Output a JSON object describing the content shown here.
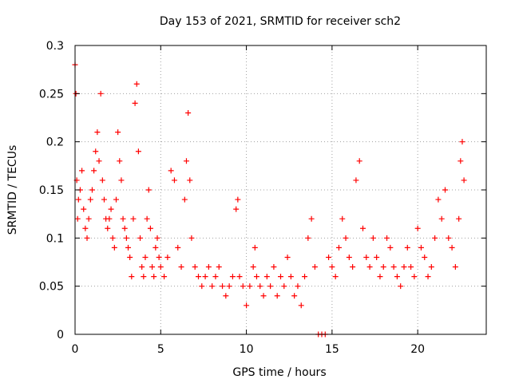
{
  "chart_data": {
    "type": "scatter",
    "title": "Day 153 of 2021, SRMTID for receiver sch2",
    "xlabel": "GPS time / hours",
    "ylabel": "SRMTID / TECUs",
    "xlim": [
      0,
      24
    ],
    "ylim": [
      0,
      0.3
    ],
    "xticks": [
      0,
      5,
      10,
      15,
      20
    ],
    "yticks": [
      0,
      0.05,
      0.1,
      0.15,
      0.2,
      0.25,
      0.3
    ],
    "grid": true,
    "marker": "+",
    "color": "#ff0000",
    "series": [
      {
        "name": "sch2",
        "x": [
          0.0,
          0.05,
          0.1,
          0.15,
          0.2,
          0.3,
          0.4,
          0.5,
          0.6,
          0.7,
          0.8,
          0.9,
          1.0,
          1.1,
          1.2,
          1.3,
          1.4,
          1.5,
          1.6,
          1.7,
          1.8,
          1.9,
          2.0,
          2.1,
          2.2,
          2.3,
          2.4,
          2.5,
          2.6,
          2.7,
          2.8,
          2.9,
          3.0,
          3.1,
          3.2,
          3.3,
          3.4,
          3.5,
          3.6,
          3.7,
          3.8,
          3.9,
          4.0,
          4.1,
          4.2,
          4.3,
          4.4,
          4.5,
          4.6,
          4.7,
          4.8,
          4.9,
          5.0,
          5.2,
          5.4,
          5.6,
          5.8,
          6.0,
          6.2,
          6.4,
          6.5,
          6.6,
          6.7,
          6.8,
          7.0,
          7.2,
          7.4,
          7.6,
          7.8,
          8.0,
          8.2,
          8.4,
          8.6,
          8.8,
          9.0,
          9.2,
          9.4,
          9.5,
          9.6,
          9.8,
          10.0,
          10.2,
          10.4,
          10.5,
          10.6,
          10.8,
          11.0,
          11.2,
          11.4,
          11.6,
          11.8,
          12.0,
          12.2,
          12.4,
          12.6,
          12.8,
          13.0,
          13.2,
          13.4,
          13.6,
          13.8,
          14.0,
          14.2,
          14.4,
          14.6,
          14.8,
          15.0,
          15.2,
          15.4,
          15.6,
          15.8,
          16.0,
          16.2,
          16.4,
          16.6,
          16.8,
          17.0,
          17.2,
          17.4,
          17.6,
          17.8,
          18.0,
          18.2,
          18.4,
          18.6,
          18.8,
          19.0,
          19.2,
          19.4,
          19.6,
          19.8,
          20.0,
          20.2,
          20.4,
          20.6,
          20.8,
          21.0,
          21.2,
          21.4,
          21.6,
          21.8,
          22.0,
          22.2,
          22.4,
          22.5,
          22.6,
          22.7
        ],
        "y": [
          0.28,
          0.25,
          0.16,
          0.12,
          0.14,
          0.15,
          0.17,
          0.13,
          0.11,
          0.1,
          0.12,
          0.14,
          0.15,
          0.17,
          0.19,
          0.21,
          0.18,
          0.25,
          0.16,
          0.14,
          0.12,
          0.11,
          0.12,
          0.13,
          0.1,
          0.09,
          0.14,
          0.21,
          0.18,
          0.16,
          0.12,
          0.11,
          0.1,
          0.09,
          0.08,
          0.06,
          0.12,
          0.24,
          0.26,
          0.19,
          0.1,
          0.07,
          0.06,
          0.08,
          0.12,
          0.15,
          0.11,
          0.07,
          0.06,
          0.09,
          0.1,
          0.08,
          0.07,
          0.06,
          0.08,
          0.17,
          0.16,
          0.09,
          0.07,
          0.14,
          0.18,
          0.23,
          0.16,
          0.1,
          0.07,
          0.06,
          0.05,
          0.06,
          0.07,
          0.05,
          0.06,
          0.07,
          0.05,
          0.04,
          0.05,
          0.06,
          0.13,
          0.14,
          0.06,
          0.05,
          0.03,
          0.05,
          0.07,
          0.09,
          0.06,
          0.05,
          0.04,
          0.06,
          0.05,
          0.07,
          0.04,
          0.06,
          0.05,
          0.08,
          0.06,
          0.04,
          0.05,
          0.03,
          0.06,
          0.1,
          0.12,
          0.07,
          0.0,
          0.0,
          0.0,
          0.08,
          0.07,
          0.06,
          0.09,
          0.12,
          0.1,
          0.08,
          0.07,
          0.16,
          0.18,
          0.11,
          0.08,
          0.07,
          0.1,
          0.08,
          0.06,
          0.07,
          0.1,
          0.09,
          0.07,
          0.06,
          0.05,
          0.07,
          0.09,
          0.07,
          0.06,
          0.11,
          0.09,
          0.08,
          0.06,
          0.07,
          0.1,
          0.14,
          0.12,
          0.15,
          0.1,
          0.09,
          0.07,
          0.12,
          0.18,
          0.2,
          0.16
        ]
      }
    ]
  }
}
